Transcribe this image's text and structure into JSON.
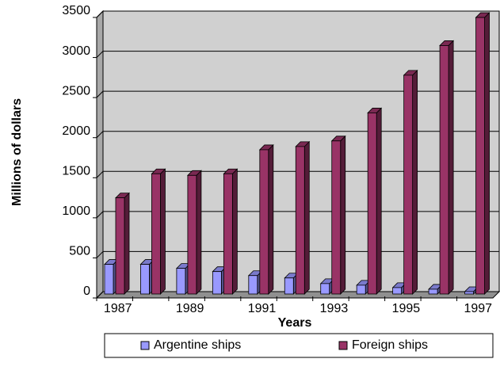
{
  "chart_data": {
    "type": "bar3d",
    "x_label": "Years",
    "y_label": "Millions of dollars",
    "categories": [
      "1987",
      null,
      "1989",
      null,
      "1991",
      null,
      "1993",
      null,
      "1995",
      null,
      "1997"
    ],
    "series": [
      {
        "name": "Argentine ships",
        "color": "#9999ff",
        "values": [
          370,
          370,
          320,
          280,
          230,
          200,
          130,
          110,
          80,
          60,
          30
        ]
      },
      {
        "name": "Foreign ships",
        "color": "#993366",
        "values": [
          1200,
          1500,
          1480,
          1500,
          1800,
          1840,
          1910,
          2260,
          2730,
          3100,
          3450
        ]
      }
    ],
    "ylim": [
      0,
      3500
    ],
    "yticks": [
      0,
      500,
      1000,
      1500,
      2000,
      2500,
      3000,
      3500
    ],
    "grid": true
  }
}
